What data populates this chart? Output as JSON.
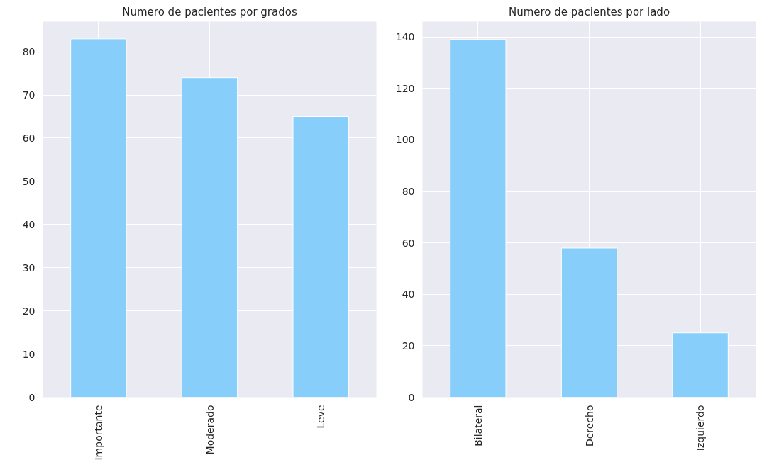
{
  "chart_data": [
    {
      "type": "bar",
      "title": "Numero de pacientes por grados",
      "categories": [
        "Importante",
        "Moderado",
        "Leve"
      ],
      "values": [
        83,
        74,
        65
      ],
      "color": "#87cefa",
      "ylim": [
        0,
        87
      ],
      "yticks": [
        0,
        10,
        20,
        30,
        40,
        50,
        60,
        70,
        80
      ],
      "grid": true
    },
    {
      "type": "bar",
      "title": "Numero de pacientes por lado",
      "categories": [
        "Bilateral",
        "Derecho",
        "Izquierdo"
      ],
      "values": [
        139,
        58,
        25
      ],
      "color": "#87cefa",
      "ylim": [
        0,
        146
      ],
      "yticks": [
        0,
        20,
        40,
        60,
        80,
        100,
        120,
        140
      ],
      "grid": true
    }
  ]
}
